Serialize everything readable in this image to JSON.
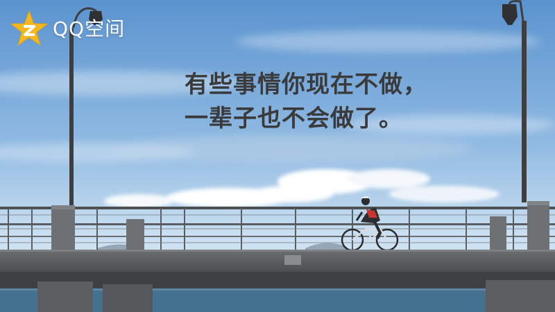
{
  "brand": {
    "name": "QQ空间",
    "icon": "qzone-star-icon",
    "star_color": "#f5b81c"
  },
  "quote": {
    "line1": "有些事情你现在不做，",
    "line2": "一辈子也不会做了。"
  },
  "colors": {
    "sky_top": "#5d95d0",
    "sky_bottom": "#cfe2f2",
    "text": "#3a3a3a",
    "bridge": "#5f6263",
    "water": "#3f6f8e"
  }
}
